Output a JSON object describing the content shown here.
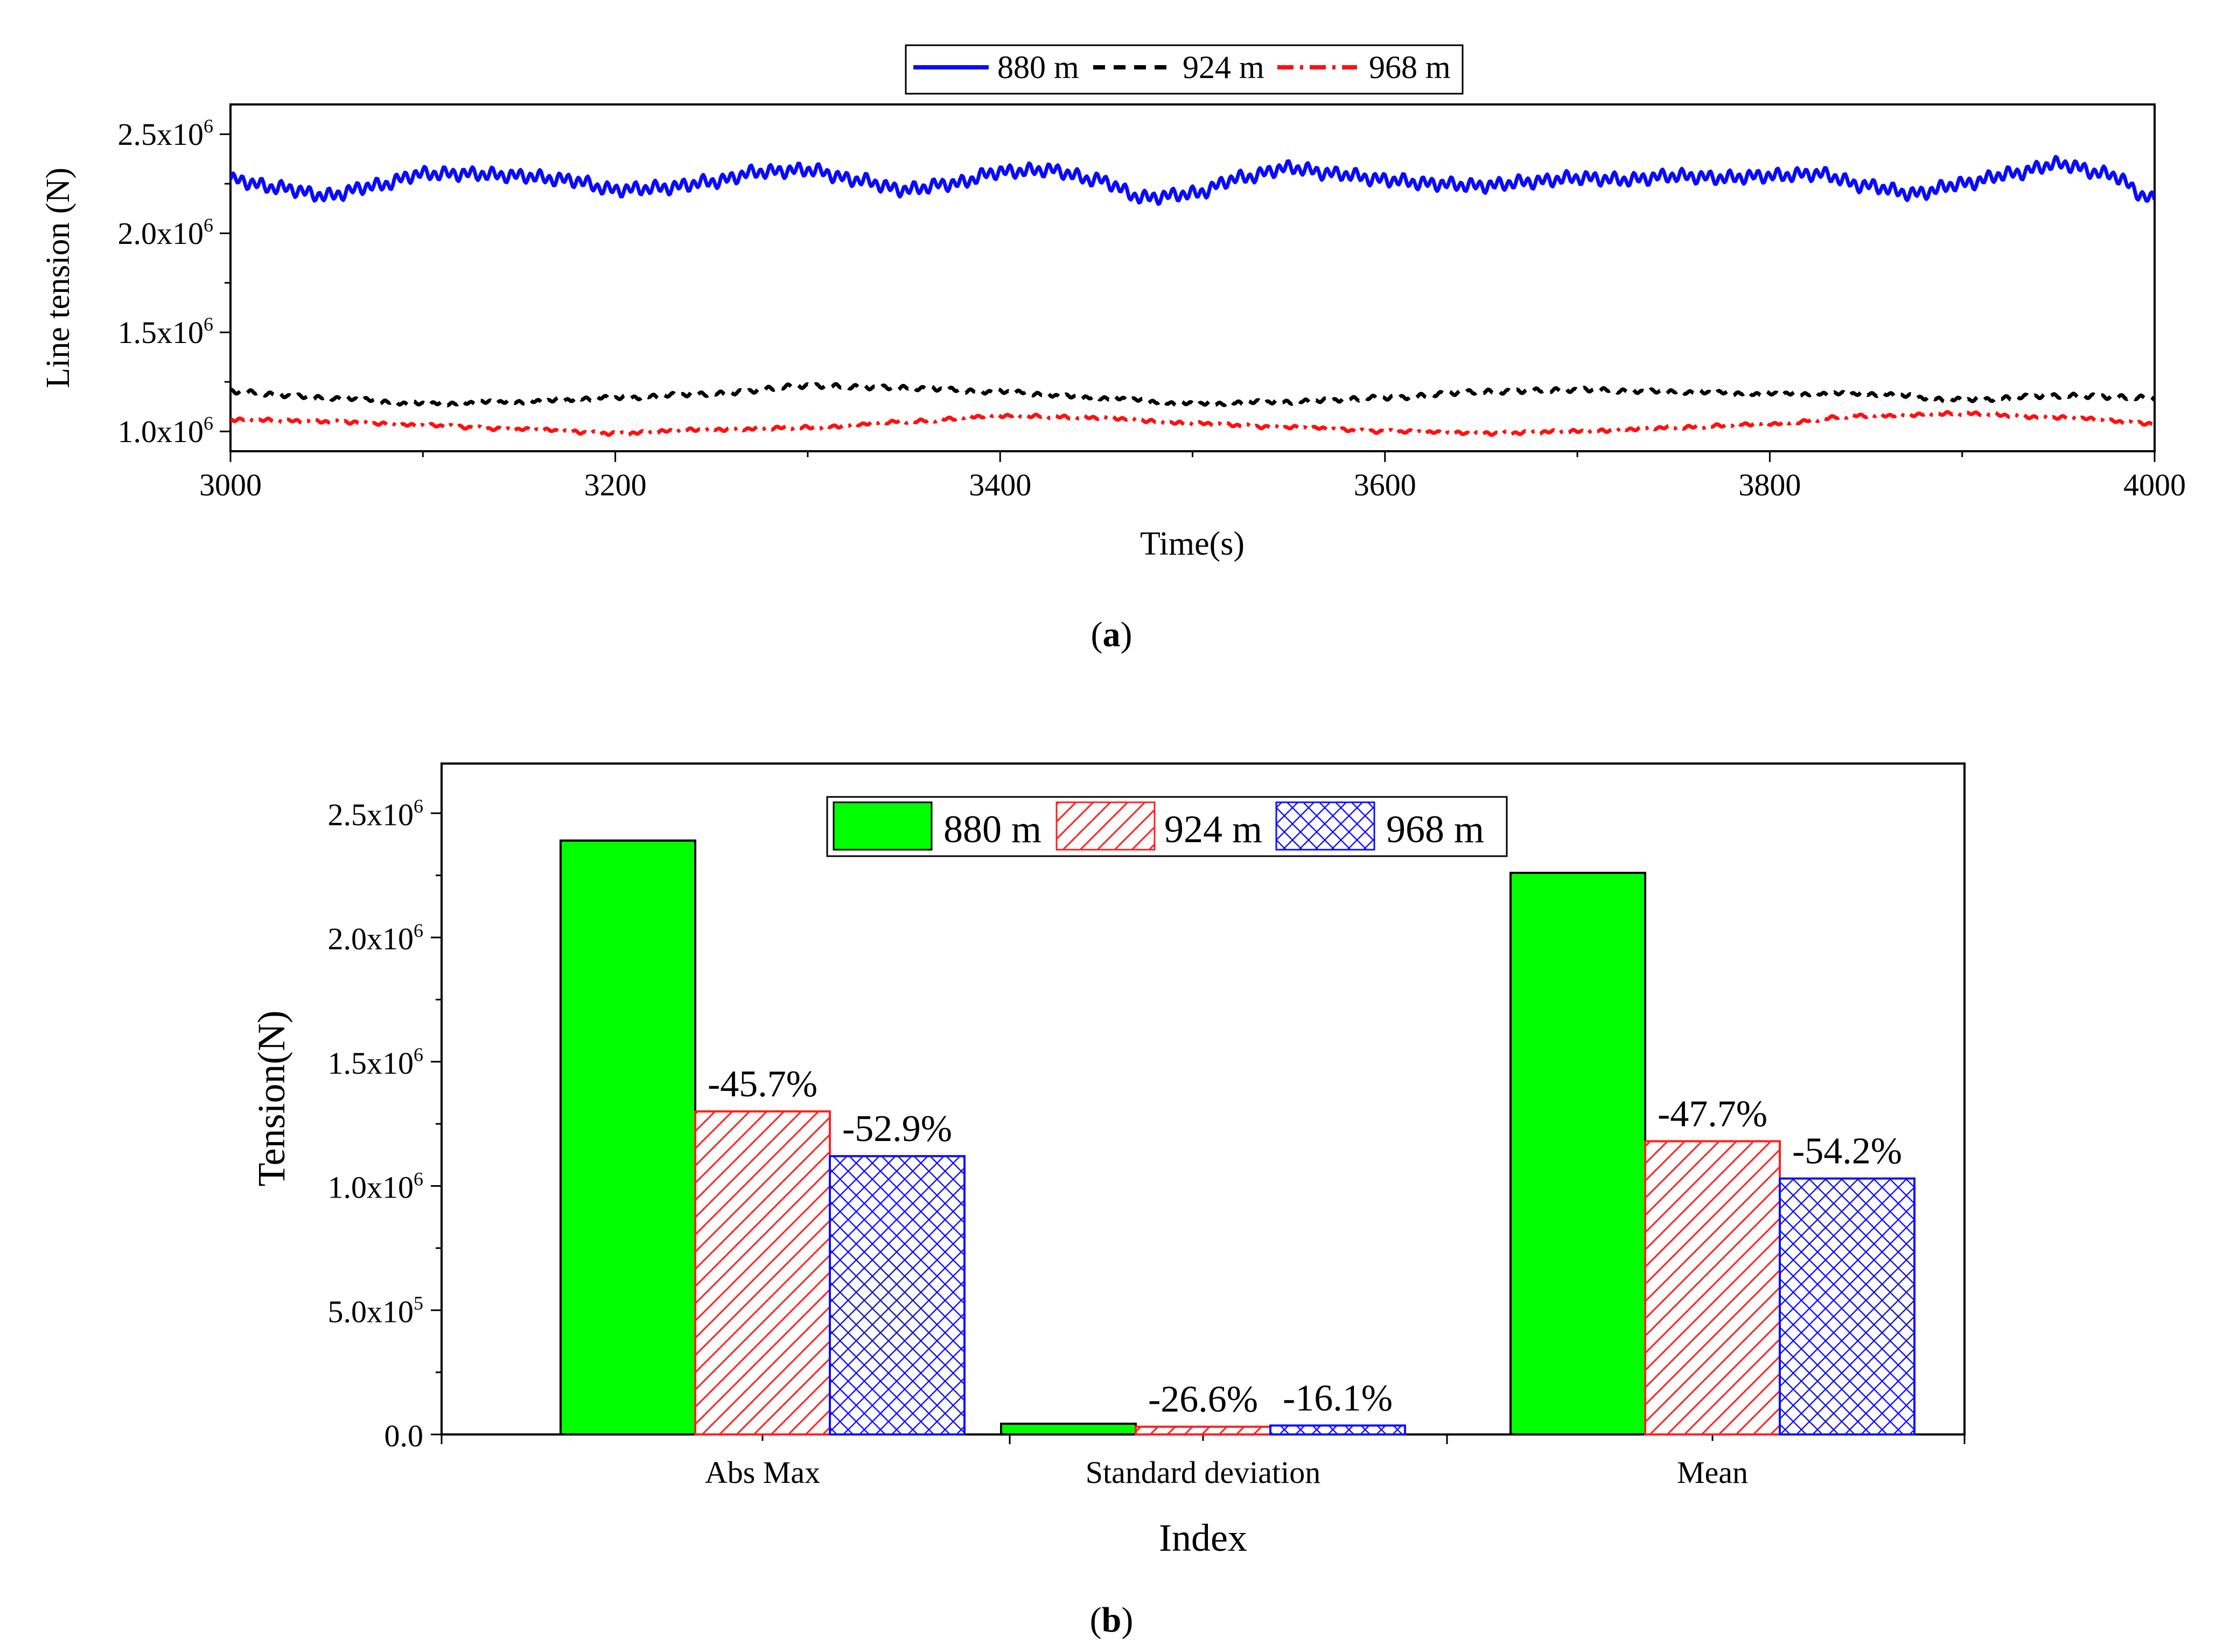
{
  "chart_data": [
    {
      "type": "line",
      "panel_label": "a",
      "xlabel": "Time(s)",
      "ylabel": "Line tension (N)",
      "xlim": [
        3000,
        4000
      ],
      "ylim": [
        900000,
        2650000
      ],
      "xticks": [
        3000,
        3200,
        3400,
        3600,
        3800,
        4000
      ],
      "xtick_labels": [
        "3000",
        "3200",
        "3400",
        "3600",
        "3800",
        "4000"
      ],
      "yticks": [
        1000000,
        1500000,
        2000000,
        2500000
      ],
      "ytick_labels": [
        {
          "mantissa": "1.0x10",
          "exponent": "6"
        },
        {
          "mantissa": "1.5x10",
          "exponent": "6"
        },
        {
          "mantissa": "2.0x10",
          "exponent": "6"
        },
        {
          "mantissa": "2.5x10",
          "exponent": "6"
        }
      ],
      "legend_position": "top-center",
      "series": [
        {
          "name": "880 m",
          "color": "#0a0aff",
          "style": "solid",
          "x": [
            3000,
            3025,
            3050,
            3075,
            3100,
            3125,
            3150,
            3175,
            3200,
            3225,
            3250,
            3275,
            3300,
            3325,
            3350,
            3375,
            3400,
            3425,
            3450,
            3475,
            3500,
            3525,
            3550,
            3575,
            3600,
            3625,
            3650,
            3675,
            3700,
            3725,
            3750,
            3775,
            3800,
            3825,
            3850,
            3875,
            3900,
            3925,
            3950,
            3975,
            4000
          ],
          "y": [
            2270000,
            2230000,
            2190000,
            2240000,
            2300000,
            2300000,
            2290000,
            2270000,
            2220000,
            2230000,
            2260000,
            2310000,
            2320000,
            2270000,
            2220000,
            2250000,
            2310000,
            2320000,
            2270000,
            2180000,
            2200000,
            2280000,
            2330000,
            2300000,
            2270000,
            2250000,
            2240000,
            2260000,
            2280000,
            2270000,
            2290000,
            2280000,
            2290000,
            2300000,
            2240000,
            2200000,
            2250000,
            2300000,
            2350000,
            2300000,
            2170000
          ],
          "ripple": 25000
        },
        {
          "name": "924 m",
          "color": "#000000",
          "style": "dash",
          "x": [
            3000,
            3050,
            3100,
            3150,
            3200,
            3250,
            3300,
            3350,
            3400,
            3450,
            3500,
            3550,
            3600,
            3650,
            3700,
            3750,
            3800,
            3850,
            3900,
            3950,
            4000
          ],
          "y": [
            1200000,
            1170000,
            1140000,
            1150000,
            1170000,
            1190000,
            1230000,
            1220000,
            1200000,
            1170000,
            1140000,
            1150000,
            1170000,
            1200000,
            1210000,
            1200000,
            1190000,
            1190000,
            1160000,
            1180000,
            1170000
          ],
          "ripple": 8000
        },
        {
          "name": "968 m",
          "color": "#ff1010",
          "style": "dashdot",
          "x": [
            3000,
            3050,
            3100,
            3150,
            3200,
            3250,
            3300,
            3350,
            3400,
            3450,
            3500,
            3550,
            3600,
            3650,
            3700,
            3750,
            3800,
            3850,
            3900,
            3950,
            4000
          ],
          "y": [
            1060000,
            1050000,
            1030000,
            1010000,
            990000,
            1010000,
            1020000,
            1050000,
            1080000,
            1070000,
            1040000,
            1020000,
            1000000,
            990000,
            1000000,
            1020000,
            1040000,
            1080000,
            1090000,
            1070000,
            1040000
          ],
          "ripple": 6000
        }
      ]
    },
    {
      "type": "bar",
      "panel_label": "b",
      "xlabel": "Index",
      "ylabel": "Tension(N)",
      "ylim": [
        0,
        2700000
      ],
      "yticks": [
        0,
        500000,
        1000000,
        1500000,
        2000000,
        2500000
      ],
      "ytick_labels": [
        {
          "mantissa": "0.0",
          "exponent": ""
        },
        {
          "mantissa": "5.0x10",
          "exponent": "5"
        },
        {
          "mantissa": "1.0x10",
          "exponent": "6"
        },
        {
          "mantissa": "1.5x10",
          "exponent": "6"
        },
        {
          "mantissa": "2.0x10",
          "exponent": "6"
        },
        {
          "mantissa": "2.5x10",
          "exponent": "6"
        }
      ],
      "categories": [
        "Abs Max",
        "Standard deviation",
        "Mean"
      ],
      "legend_position": "top-center",
      "series": [
        {
          "name": "880 m",
          "fill": "#00ff00",
          "pattern": "solid",
          "values": [
            2390000,
            43000,
            2260000
          ],
          "annotations": [
            "",
            "",
            ""
          ]
        },
        {
          "name": "924 m",
          "fill": "#ff2020",
          "pattern": "hatch",
          "values": [
            1300000,
            31000,
            1180000
          ],
          "annotations": [
            "-45.7%",
            "-26.6%",
            "-47.7%"
          ]
        },
        {
          "name": "968 m",
          "fill": "#1010ff",
          "pattern": "crosshatch",
          "values": [
            1120000,
            36000,
            1030000
          ],
          "annotations": [
            "-52.9%",
            "-16.1%",
            "-54.2%"
          ]
        }
      ]
    }
  ]
}
